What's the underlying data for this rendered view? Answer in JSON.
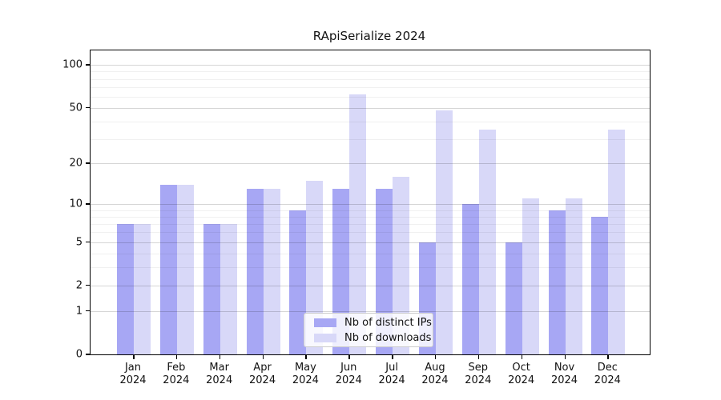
{
  "title": "RApiSerialize 2024",
  "year_label": "2024",
  "colors": {
    "ips_bar": "#a7a7f4",
    "downloads_bar": "#d8d8f8",
    "frame": "#000000"
  },
  "legend": {
    "items": [
      {
        "label": "Nb of distinct IPs",
        "color_key": "ips_bar"
      },
      {
        "label": "Nb of downloads",
        "color_key": "downloads_bar"
      }
    ]
  },
  "chart_data": {
    "type": "bar",
    "title": "RApiSerialize 2024",
    "xlabel": "",
    "ylabel": "",
    "scale": "log1p",
    "grid": "on",
    "legend_position": "bottom-center-inside",
    "months": [
      "Jan",
      "Feb",
      "Mar",
      "Apr",
      "May",
      "Jun",
      "Jul",
      "Aug",
      "Sep",
      "Oct",
      "Nov",
      "Dec"
    ],
    "categories": [
      "Jan 2024",
      "Feb 2024",
      "Mar 2024",
      "Apr 2024",
      "May 2024",
      "Jun 2024",
      "Jul 2024",
      "Aug 2024",
      "Sep 2024",
      "Oct 2024",
      "Nov 2024",
      "Dec 2024"
    ],
    "series": [
      {
        "name": "Nb of distinct IPs",
        "values": [
          7,
          14,
          7,
          13,
          9,
          13,
          13,
          5,
          10,
          5,
          9,
          8
        ]
      },
      {
        "name": "Nb of downloads",
        "values": [
          7,
          14,
          7,
          13,
          15,
          62,
          16,
          48,
          35,
          11,
          11,
          35
        ]
      }
    ],
    "y_ticks": [
      0,
      1,
      2,
      5,
      10,
      20,
      50,
      100
    ],
    "y_minor_ticks": [
      3,
      4,
      6,
      7,
      8,
      9,
      30,
      40,
      60,
      70,
      80,
      90
    ],
    "ylim": [
      0,
      126
    ]
  }
}
